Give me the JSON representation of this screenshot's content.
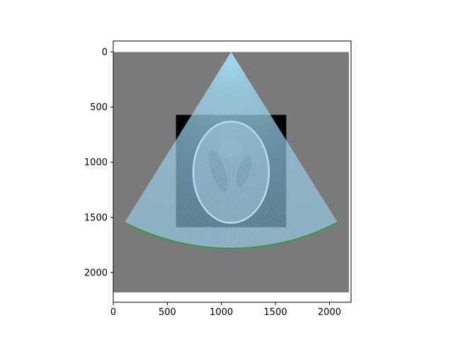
{
  "chart_data": {
    "type": "heatmap",
    "title": "",
    "xlabel": "",
    "ylabel": "",
    "xlim": [
      0,
      2200
    ],
    "ylim": [
      2270,
      -100
    ],
    "y_inverted": true,
    "grid": false,
    "image_extent": {
      "x": [
        0,
        2180
      ],
      "y": [
        0,
        2180
      ]
    },
    "background_value_color": "#7a7a7a",
    "phantom_square": {
      "x": [
        580,
        1600
      ],
      "y": [
        570,
        1590
      ],
      "color": "#000000"
    },
    "phantom_outer_ellipse": {
      "cx": 1090,
      "cy": 1090,
      "rx": 350,
      "ry": 460
    },
    "phantom_inner_ellipses": [
      {
        "cx": 970,
        "cy": 1080,
        "rx": 65,
        "ry": 200,
        "angle": -18
      },
      {
        "cx": 1210,
        "cy": 1080,
        "rx": 55,
        "ry": 150,
        "angle": 18
      },
      {
        "cx": 1090,
        "cy": 870,
        "rx": 110,
        "ry": 80,
        "angle": 0
      }
    ],
    "fan_beam": {
      "apex": [
        1090,
        0
      ],
      "left_edge_end": [
        105,
        1545
      ],
      "right_edge_end": [
        2075,
        1545
      ],
      "arc_center": [
        1090,
        0
      ],
      "radius": 2180,
      "fill_color": "#93d2ec",
      "arc_color": "#2ca02c"
    },
    "x_ticks": [
      0,
      500,
      1000,
      1500,
      2000
    ],
    "y_ticks": [
      0,
      500,
      1000,
      1500,
      2000
    ],
    "x_tick_labels": [
      "0",
      "500",
      "1000",
      "1500",
      "2000"
    ],
    "y_tick_labels": [
      "0",
      "500",
      "1000",
      "1500",
      "2000"
    ]
  }
}
